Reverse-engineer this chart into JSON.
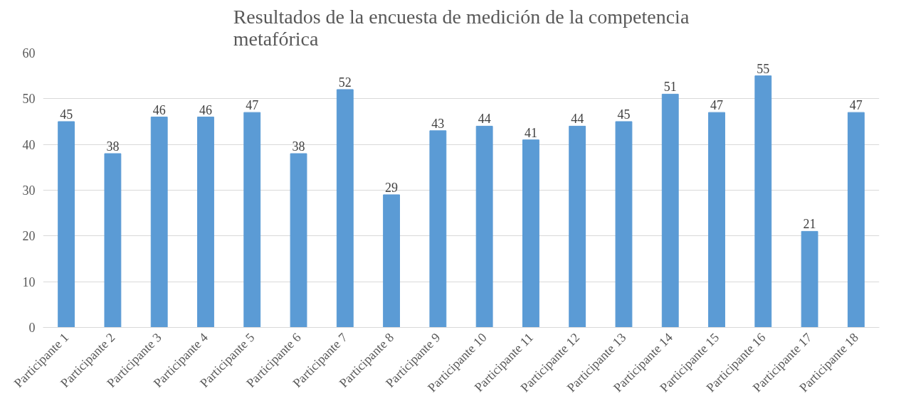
{
  "chart_data": {
    "type": "bar",
    "title": "Resultados de la encuesta de medición de la competencia metafórica",
    "categories": [
      "Participante 1",
      "Participante 2",
      "Participante 3",
      "Participante 4",
      "Participante 5",
      "Participante 6",
      "Participante 7",
      "Participante 8",
      "Participante 9",
      "Participante 10",
      "Participante 11",
      "Participante 12",
      "Participante 13",
      "Participante 14",
      "Participante 15",
      "Participante 16",
      "Participante 17",
      "Participante 18"
    ],
    "values": [
      45,
      38,
      46,
      46,
      47,
      38,
      52,
      29,
      43,
      44,
      41,
      44,
      45,
      51,
      47,
      55,
      21,
      47
    ],
    "color": "#5b9bd5",
    "ylim": [
      0,
      60
    ],
    "yticks": [
      0,
      10,
      20,
      30,
      40,
      50,
      60
    ],
    "grid": "y",
    "data_labels": true
  }
}
